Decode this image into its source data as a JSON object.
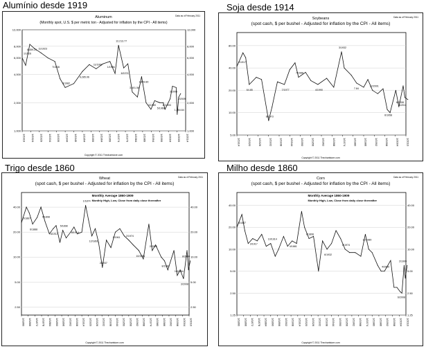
{
  "panels": [
    {
      "caption": "Alumínio desde 1919",
      "chart_data": {
        "type": "line",
        "title": "Aluminum",
        "subtitle": "(Monthly spot, U.S. $ per metric ton - Adjusted for inflation by the CPI - All items)",
        "date_note": "Data as of February 2011",
        "footer": "Copyright © 2011 Thechartstore.com",
        "scale": "log",
        "ylim": [
          1000,
          12000
        ],
        "yticks": [
          1000,
          2000,
          4000,
          6000,
          8000,
          12000
        ],
        "ytick_labels": [
          "1,000",
          "2,000",
          "4,000",
          "6,000",
          "8,000",
          "12,000"
        ],
        "xtick_labels": [
          "1/1919",
          "1/1924",
          "1/1929",
          "1/1934",
          "1/1939",
          "1/1944",
          "1/1949",
          "1/1954",
          "1/1959",
          "1/1964",
          "1/1969",
          "1/1974",
          "1/1979",
          "1/1984",
          "1/1989",
          "1/1994",
          "1/1999",
          "1/2004",
          "1/2009",
          "1/2014"
        ],
        "series": [
          {
            "x": [
              "1919-01",
              "1921-01",
              "1923-06",
              "1926-01",
              "1930-01",
              "1934-01",
              "1938-01",
              "1941-01",
              "1944-01",
              "1949-01",
              "1954-01",
              "1958-01",
              "1962-01",
              "1966-01",
              "1970-01",
              "1973-01",
              "1975-01",
              "1978-01",
              "1980-06",
              "1983-01",
              "1986-01",
              "1988-06",
              "1991-01",
              "1993-11",
              "1996-01",
              "1999-01",
              "2001-01",
              "2002-01",
              "2005-01",
              "2006-05",
              "2008-07",
              "2009-02",
              "2010-01",
              "2011-02"
            ],
            "values": [
              6000,
              5000,
              8400,
              7600,
              6800,
              6000,
              5500,
              3600,
              2900,
              3200,
              4300,
              5100,
              4600,
              5200,
              5500,
              4100,
              8200,
              4700,
              5200,
              2600,
              2300,
              3800,
              2000,
              1700,
              2100,
              2000,
              2000,
              1700,
              2200,
              3000,
              2900,
              1500,
              2300,
              2500
            ]
          }
        ],
        "annotations": [
          "1/1926",
          "8,459.25",
          "11/1923",
          "7/1936",
          "3/1982",
          "6,285.06",
          "11/1999",
          "1/1956",
          "12,213.77",
          "6/1974",
          "3,601.58",
          "1,869.80",
          "3/1969",
          "5/1960",
          "11/1993",
          "3/2008",
          "1,554.64",
          "2/2009"
        ]
      }
    },
    {
      "caption": "Soja desde 1914",
      "chart_data": {
        "type": "line",
        "title": "Soybeans",
        "subtitle": "(spot cash, $ per bushel - Adjusted for inflation by the CPI - All items)",
        "date_note": "Data as of February 2011",
        "footer": "Copyright © 2011 Thechartstore.com",
        "scale": "log",
        "ylim": [
          5,
          120
        ],
        "yticks": [
          5,
          10,
          20,
          40,
          80
        ],
        "ytick_labels": [
          "5.00",
          "10.00",
          "20.00",
          "40.00",
          "80.00"
        ],
        "xtick_labels": [
          "1/1914",
          "1/1920",
          "1/1926",
          "1/1932",
          "1/1938",
          "1/1944",
          "1/1950",
          "1/1956",
          "1/1962",
          "1/1968",
          "1/1974",
          "1/1980",
          "1/1986",
          "1/1992",
          "1/1998",
          "1/2004",
          "1/2010"
        ],
        "series": [
          {
            "x": [
              "1914-01",
              "1917-06",
              "1919-01",
              "1921-01",
              "1925-01",
              "1928-01",
              "1932-01",
              "1934-01",
              "1937-01",
              "1941-01",
              "1944-01",
              "1947-01",
              "1949-01",
              "1953-01",
              "1956-01",
              "1960-01",
              "1965-01",
              "1969-01",
              "1973-06",
              "1975-01",
              "1979-01",
              "1982-01",
              "1986-01",
              "1988-06",
              "1991-01",
              "1994-01",
              "1997-01",
              "1999-06",
              "2001-01",
              "2004-04",
              "2006-01",
              "2008-06",
              "2009-06",
              "2011-02"
            ],
            "values": [
              42,
              64,
              55,
              24,
              30,
              28,
              7.8,
              12,
              26,
              24,
              38,
              47,
              30,
              35,
              27,
              24,
              29,
              22,
              66,
              40,
              32,
              25,
              22,
              28,
              20,
              18,
              21,
              11,
              10,
              20,
              12,
              23,
              16,
              15
            ]
          }
        ],
        "annotations": [
          "2/1917",
          "64.85",
          "6/1973",
          "7/1977",
          "7/1988",
          "4/1990",
          "3/1932",
          "7.84",
          "12/2001",
          "6/1958",
          "6/2008",
          "1/2011"
        ]
      }
    },
    {
      "caption": "Trigo desde 1860",
      "chart_data": {
        "type": "line",
        "title": "Wheat",
        "subtitle": "(spot cash, $ per bushel - Adjusted for inflation by the CPI - All items)",
        "legend_note_1": "Monthly Average 1860-1909",
        "legend_note_2": "Monthly High, Low, Close from daily close thereafter",
        "date_note": "Data as of February 2011",
        "footer": "Copyright © 2011 Thechartstore.com",
        "scale": "log",
        "ylim": [
          2,
          60
        ],
        "yticks": [
          2.5,
          5,
          10,
          20,
          40
        ],
        "ytick_labels": [
          "2.50",
          "5.00",
          "10.00",
          "20.00",
          "40.00"
        ],
        "xtick_labels": [
          "1/1860",
          "1/1866",
          "1/1872",
          "1/1878",
          "1/1884",
          "1/1890",
          "1/1896",
          "1/1902",
          "1/1908",
          "1/1914",
          "1/1920",
          "1/1926",
          "1/1932",
          "1/1938",
          "1/1944",
          "1/1950",
          "1/1956",
          "1/1962",
          "1/1968",
          "1/1974",
          "1/1980",
          "1/1986",
          "1/1992",
          "1/1998",
          "1/2004",
          "1/2010"
        ],
        "series": [
          {
            "x": [
              "1860-01",
              "1864-06",
              "1867-01",
              "1870-01",
              "1874-01",
              "1877-06",
              "1881-01",
              "1885-01",
              "1888-06",
              "1891-01",
              "1894-06",
              "1897-01",
              "1900-01",
              "1904-01",
              "1907-01",
              "1910-01",
              "1914-01",
              "1917-06",
              "1920-01",
              "1923-01",
              "1926-01",
              "1929-01",
              "1932-06",
              "1936-01",
              "1940-01",
              "1944-01",
              "1948-01",
              "1952-01",
              "1956-01",
              "1960-01",
              "1965-01",
              "1969-01",
              "1974-01",
              "1977-01",
              "1980-01",
              "1985-01",
              "1988-01",
              "1991-01",
              "1996-06",
              "1999-06",
              "2002-01",
              "2005-01",
              "2008-03",
              "2009-06",
              "2011-02"
            ],
            "values": [
              26,
              40,
              34,
              25,
              30,
              40,
              27,
              19,
              22,
              24,
              15,
              21,
              17,
              20,
              23,
              19,
              20,
              42,
              28,
              18,
              22,
              15,
              7.5,
              16,
              13,
              20,
              22,
              18,
              16,
              14,
              12,
              9.5,
              25,
              12,
              14,
              10,
              9,
              7,
              12,
              6,
              7,
              5.5,
              12,
              7,
              9
            ]
          }
        ],
        "annotations": [
          "5/1867",
          "6/1888",
          "4/1898",
          "6/1917",
          "5/1898",
          "8/1914",
          "1/1874",
          "12/1861",
          "2/1937",
          "1/1961",
          "2/1974",
          "10/1981",
          "2/2005",
          "8/1980",
          "10/1984",
          "3/2008",
          "8/2000"
        ]
      }
    },
    {
      "caption": "Milho desde 1860",
      "chart_data": {
        "type": "line",
        "title": "Corn",
        "subtitle": "(spot cash, $ per bushel - Adjusted for inflation by the CPI - All items)",
        "legend_note_1": "Monthly Average 1860-1909",
        "legend_note_2": "Monthly High, Low, Close from daily close thereafter",
        "date_note": "Data as of February 2011",
        "footer": "Copyright © 2011 Thechartstore.com",
        "scale": "log",
        "ylim": [
          1.25,
          60
        ],
        "yticks": [
          1.25,
          2.5,
          5,
          10,
          20,
          40
        ],
        "ytick_labels": [
          "1.25",
          "2.50",
          "5.00",
          "10.00",
          "20.00",
          "40.00"
        ],
        "xtick_labels": [
          "1/1860",
          "1/1866",
          "1/1872",
          "1/1878",
          "1/1884",
          "1/1890",
          "1/1896",
          "1/1902",
          "1/1908",
          "1/1914",
          "1/1920",
          "1/1926",
          "1/1932",
          "1/1938",
          "1/1944",
          "1/1950",
          "1/1956",
          "1/1962",
          "1/1968",
          "1/1974",
          "1/1980",
          "1/1986",
          "1/1992",
          "1/1998",
          "1/2004",
          "1/2010"
        ],
        "series": [
          {
            "x": [
              "1860-01",
              "1864-06",
              "1867-01",
              "1870-01",
              "1874-01",
              "1878-01",
              "1882-01",
              "1886-01",
              "1890-01",
              "1894-01",
              "1897-01",
              "1901-06",
              "1905-01",
              "1909-01",
              "1913-01",
              "1917-06",
              "1920-01",
              "1924-01",
              "1928-01",
              "1932-06",
              "1936-01",
              "1940-01",
              "1944-01",
              "1948-01",
              "1952-01",
              "1956-01",
              "1960-01",
              "1965-01",
              "1970-01",
              "1974-01",
              "1977-01",
              "1980-01",
              "1985-01",
              "1988-01",
              "1991-01",
              "1996-06",
              "1999-06",
              "2002-01",
              "2005-01",
              "2006-06",
              "2008-06",
              "2009-06",
              "2011-02"
            ],
            "values": [
              20,
              30,
              18,
              12,
              14,
              13,
              16,
              11,
              12,
              8,
              10,
              15,
              11,
              13,
              12,
              33,
              20,
              14,
              15,
              5,
              13,
              10,
              12,
              18,
              14,
              10,
              9,
              9,
              8,
              16,
              10,
              9,
              6,
              5,
              5,
              7,
              3,
              3,
              2.6,
              2.5,
              6,
              4,
              6
            ]
          }
        ],
        "annotations": [
          "5/1867",
          "3/1917",
          "10/1914",
          "4/1881",
          "8/1896",
          "6/1932",
          "8/1974",
          "10/1980",
          "4/2005",
          "6/2008",
          "2/1999"
        ]
      }
    }
  ]
}
